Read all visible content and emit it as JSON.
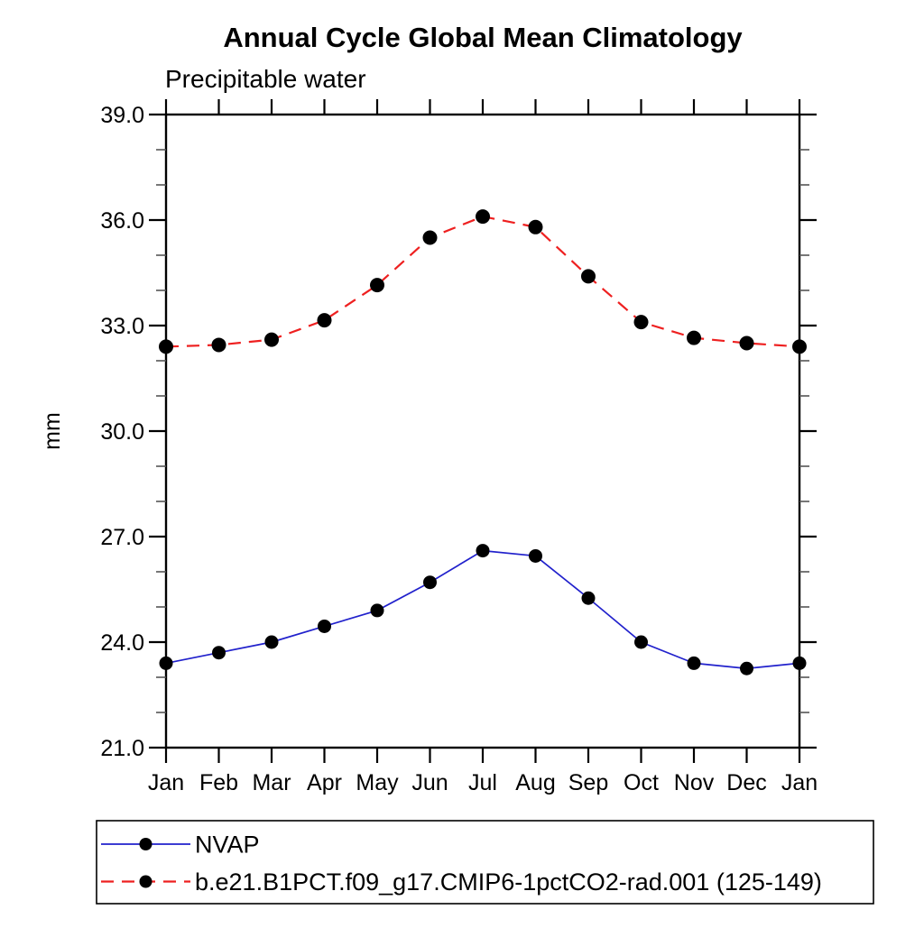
{
  "page": {
    "background": "#ffffff"
  },
  "chart_data": {
    "type": "line",
    "title": "Annual Cycle Global Mean Climatology",
    "subtitle": "Precipitable water",
    "xlabel": "",
    "ylabel": "mm",
    "x_tick_labels": [
      "Jan",
      "Feb",
      "Mar",
      "Apr",
      "May",
      "Jun",
      "Jul",
      "Aug",
      "Sep",
      "Oct",
      "Nov",
      "Dec",
      "Jan"
    ],
    "ylim": [
      21.0,
      39.0
    ],
    "y_major_ticks": [
      21.0,
      24.0,
      27.0,
      30.0,
      33.0,
      36.0,
      39.0
    ],
    "y_major_tick_labels": [
      "21.0",
      "24.0",
      "27.0",
      "30.0",
      "33.0",
      "36.0",
      "39.0"
    ],
    "y_minor_step": 1.0,
    "grid": false,
    "legend_position": "bottom-left",
    "axis_color": "#000000",
    "minor_tick_color": "#555555",
    "marker_color": "#000000",
    "series": [
      {
        "name": "NVAP",
        "color": "#2121cc",
        "line_style": "solid",
        "line_width": 1.7,
        "marker": "filled-circle",
        "marker_radius": 7.5,
        "values": [
          23.4,
          23.7,
          24.0,
          24.45,
          24.9,
          25.7,
          26.6,
          26.45,
          25.25,
          24.0,
          23.4,
          23.25,
          23.4
        ]
      },
      {
        "name": "b.e21.B1PCT.f09_g17.CMIP6-1pctCO2-rad.001 (125-149)",
        "color": "#ee2020",
        "line_style": "dashed",
        "line_width": 2.2,
        "marker": "filled-circle",
        "marker_radius": 8,
        "values": [
          32.4,
          32.45,
          32.6,
          33.15,
          34.15,
          35.5,
          36.1,
          35.8,
          34.4,
          33.1,
          32.65,
          32.5,
          32.4
        ]
      }
    ]
  }
}
